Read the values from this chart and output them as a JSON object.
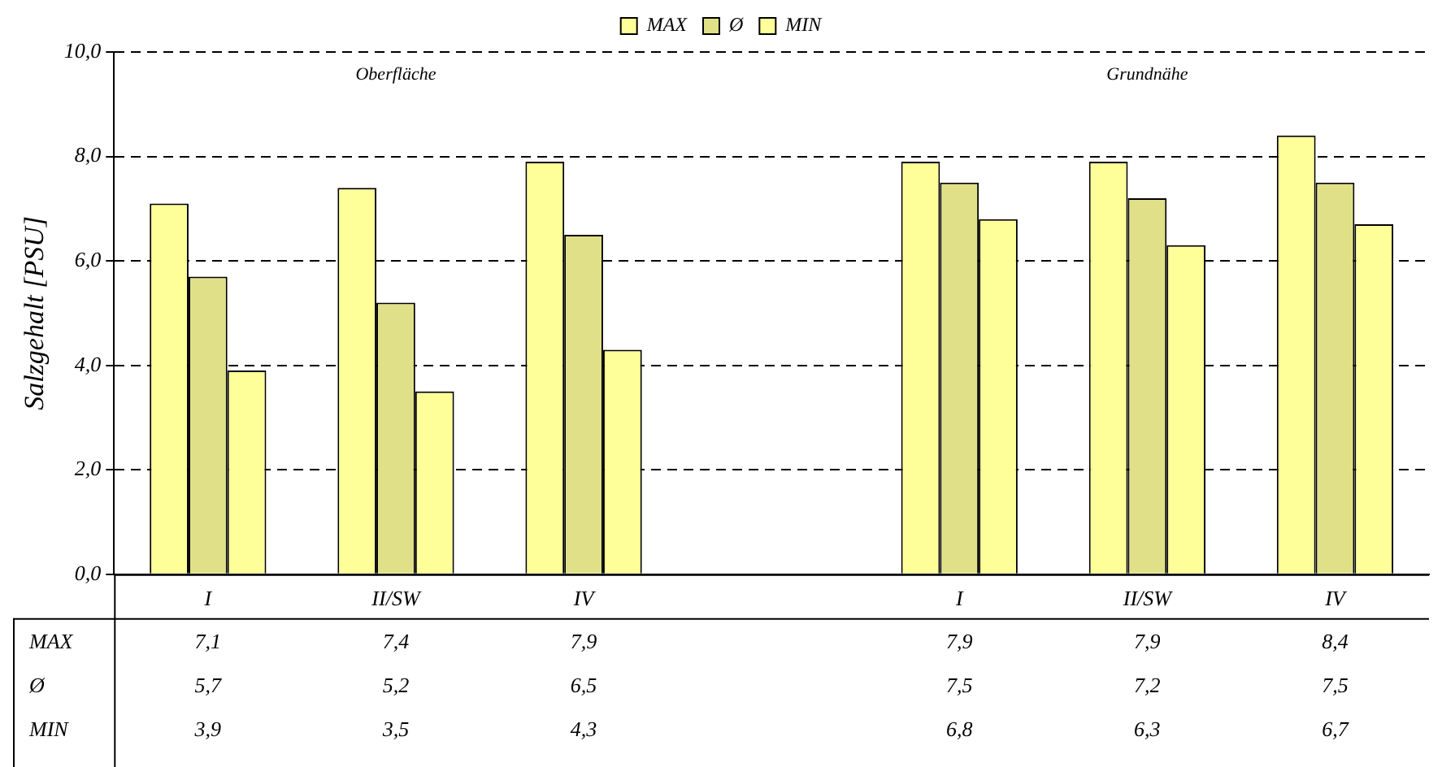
{
  "chart_data": {
    "type": "bar",
    "ylabel": "Salzgehalt [PSU]",
    "categories": [
      "I",
      "II/SW",
      "IV",
      null,
      "I",
      "II/SW",
      "IV"
    ],
    "series": [
      {
        "name": "MAX",
        "color": "#ffff99",
        "values": [
          7.1,
          7.4,
          7.9,
          null,
          7.9,
          7.9,
          8.4
        ],
        "value_labels": [
          "7,1",
          "7,4",
          "7,9",
          null,
          "7,9",
          "7,9",
          "8,4"
        ]
      },
      {
        "name": "Ø",
        "color": "#e0e088",
        "values": [
          5.7,
          5.2,
          6.5,
          null,
          7.5,
          7.2,
          7.5
        ],
        "value_labels": [
          "5,7",
          "5,2",
          "6,5",
          null,
          "7,5",
          "7,2",
          "7,5"
        ]
      },
      {
        "name": "MIN",
        "color": "#ffff99",
        "values": [
          3.9,
          3.5,
          4.3,
          null,
          6.8,
          6.3,
          6.7
        ],
        "value_labels": [
          "3,9",
          "3,5",
          "4,3",
          null,
          "6,8",
          "6,3",
          "6,7"
        ]
      }
    ],
    "ylim": [
      0,
      10
    ],
    "yticks": [
      {
        "value": 0,
        "label": "0,0"
      },
      {
        "value": 2,
        "label": "2,0"
      },
      {
        "value": 4,
        "label": "4,0"
      },
      {
        "value": 6,
        "label": "6,0"
      },
      {
        "value": 8,
        "label": "8,0"
      },
      {
        "value": 10,
        "label": "10,0"
      }
    ],
    "grid": "y",
    "legend": "top",
    "annotations": [
      "Oberfläche",
      "Grundnähe"
    ]
  }
}
